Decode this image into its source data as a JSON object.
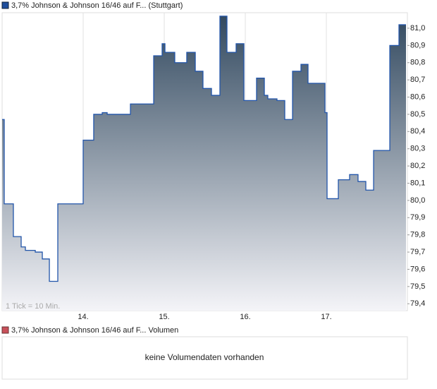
{
  "chart_data": {
    "type": "line",
    "legend": "3,7% Johnson & Johnson 16/46 auf F... (Stuttgart)",
    "note": "1 Tick = 10 Min.",
    "step": true,
    "series": [
      {
        "name": "3,7% Johnson & Johnson 16/46 auf F... (Stuttgart)",
        "color": "#2255aa",
        "x": [
          13.0,
          13.026,
          13.139,
          13.235,
          13.287,
          13.409,
          13.496,
          13.583,
          13.687,
          14.0,
          14.13,
          14.235,
          14.296,
          14.583,
          14.87,
          14.974,
          15.009,
          15.13,
          15.278,
          15.383,
          15.478,
          15.583,
          15.687,
          15.774,
          15.887,
          15.983,
          16.139,
          16.235,
          16.278,
          16.391,
          16.487,
          16.583,
          16.687,
          16.774,
          16.983,
          17.009,
          17.148,
          17.287,
          17.391,
          17.487,
          17.583,
          17.783,
          17.896
        ],
        "values": [
          80.47,
          79.98,
          79.79,
          79.73,
          79.71,
          79.7,
          79.66,
          79.53,
          79.98,
          80.35,
          80.5,
          80.51,
          80.5,
          80.56,
          80.84,
          80.91,
          80.86,
          80.8,
          80.86,
          80.75,
          80.65,
          80.61,
          81.07,
          80.86,
          80.91,
          80.58,
          80.71,
          80.61,
          80.59,
          80.58,
          80.47,
          80.75,
          80.79,
          80.68,
          80.51,
          80.01,
          80.12,
          80.15,
          80.11,
          80.06,
          80.29,
          80.9,
          81.02
        ]
      }
    ],
    "xlim": [
      13,
      18
    ],
    "xticks": [
      {
        "value": 14,
        "label": "14."
      },
      {
        "value": 15,
        "label": "15."
      },
      {
        "value": 16,
        "label": "16."
      },
      {
        "value": 17,
        "label": "17."
      }
    ],
    "ylim": [
      79.36,
      81.09
    ],
    "yticks": [
      {
        "value": 79.4,
        "label": "79,4"
      },
      {
        "value": 79.5,
        "label": "79,5"
      },
      {
        "value": 79.6,
        "label": "79,6"
      },
      {
        "value": 79.7,
        "label": "79,7"
      },
      {
        "value": 79.8,
        "label": "79,8"
      },
      {
        "value": 79.9,
        "label": "79,9"
      },
      {
        "value": 80.0,
        "label": "80,0"
      },
      {
        "value": 80.1,
        "label": "80,1"
      },
      {
        "value": 80.2,
        "label": "80,2"
      },
      {
        "value": 80.3,
        "label": "80,3"
      },
      {
        "value": 80.4,
        "label": "80,4"
      },
      {
        "value": 80.5,
        "label": "80,5"
      },
      {
        "value": 80.6,
        "label": "80,6"
      },
      {
        "value": 80.7,
        "label": "80,7"
      },
      {
        "value": 80.8,
        "label": "80,8"
      },
      {
        "value": 80.9,
        "label": "80,9"
      },
      {
        "value": 81.0,
        "label": "81,0"
      }
    ],
    "grid": "x",
    "volume": {
      "legend": "3,7% Johnson & Johnson 16/46 auf F... Volumen",
      "color": "#c8505a",
      "message": "keine Volumendaten vorhanden"
    }
  }
}
